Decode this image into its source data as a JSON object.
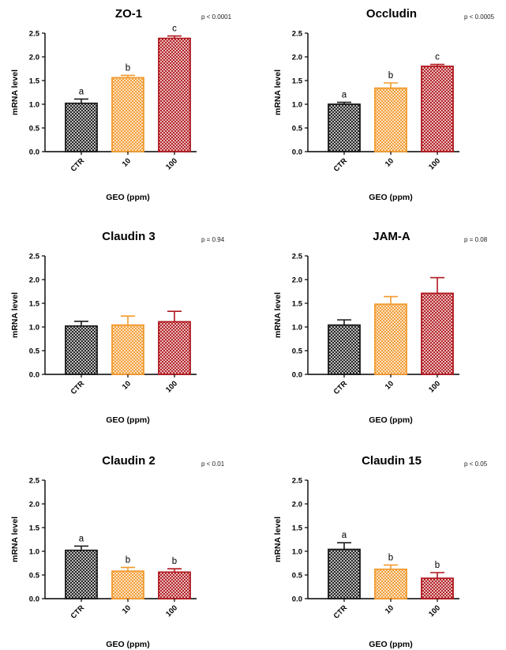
{
  "chart_data": [
    {
      "type": "bar",
      "title": "ZO-1",
      "p_value": "p < 0.0001",
      "categories": [
        "CTR",
        "10",
        "100"
      ],
      "values": [
        1.02,
        1.56,
        2.39
      ],
      "errors": [
        0.09,
        0.05,
        0.05
      ],
      "letters": [
        "a",
        "b",
        "c"
      ],
      "ylabel": "mRNA level",
      "xlabel": "GEO (ppm)",
      "ylim": [
        0,
        2.5
      ],
      "yticks": [
        "0.0",
        "0.5",
        "1.0",
        "1.5",
        "2.0",
        "2.5"
      ]
    },
    {
      "type": "bar",
      "title": "Occludin",
      "p_value": "p < 0.0005",
      "categories": [
        "CTR",
        "10",
        "100"
      ],
      "values": [
        1.0,
        1.34,
        1.8
      ],
      "errors": [
        0.04,
        0.11,
        0.04
      ],
      "letters": [
        "a",
        "b",
        "c"
      ],
      "ylabel": "mRNA level",
      "xlabel": "GEO (ppm)",
      "ylim": [
        0,
        2.5
      ],
      "yticks": [
        "0.0",
        "0.5",
        "1.0",
        "1.5",
        "2.0",
        "2.5"
      ]
    },
    {
      "type": "bar",
      "title": "Claudin 3",
      "p_value": "p = 0.94",
      "categories": [
        "CTR",
        "10",
        "100"
      ],
      "values": [
        1.02,
        1.04,
        1.11
      ],
      "errors": [
        0.1,
        0.19,
        0.22
      ],
      "letters": [
        "",
        "",
        ""
      ],
      "ylabel": "mRNA level",
      "xlabel": "GEO (ppm)",
      "ylim": [
        0,
        2.5
      ],
      "yticks": [
        "0.0",
        "0.5",
        "1.0",
        "1.5",
        "2.0",
        "2.5"
      ]
    },
    {
      "type": "bar",
      "title": "JAM-A",
      "p_value": "p = 0.08",
      "categories": [
        "CTR",
        "10",
        "100"
      ],
      "values": [
        1.04,
        1.48,
        1.71
      ],
      "errors": [
        0.11,
        0.16,
        0.33
      ],
      "letters": [
        "",
        "",
        ""
      ],
      "ylabel": "mRNA level",
      "xlabel": "GEO (ppm)",
      "ylim": [
        0,
        2.5
      ],
      "yticks": [
        "0.0",
        "0.5",
        "1.0",
        "1.5",
        "2.0",
        "2.5"
      ]
    },
    {
      "type": "bar",
      "title": "Claudin 2",
      "p_value": "p < 0.01",
      "categories": [
        "CTR",
        "10",
        "100"
      ],
      "values": [
        1.02,
        0.58,
        0.56
      ],
      "errors": [
        0.09,
        0.08,
        0.07
      ],
      "letters": [
        "a",
        "b",
        "b"
      ],
      "ylabel": "mRNA level",
      "xlabel": "GEO (ppm)",
      "ylim": [
        0,
        2.5
      ],
      "yticks": [
        "0.0",
        "0.5",
        "1.0",
        "1.5",
        "2.0",
        "2.5"
      ]
    },
    {
      "type": "bar",
      "title": "Claudin 15",
      "p_value": "p < 0.05",
      "categories": [
        "CTR",
        "10",
        "100"
      ],
      "values": [
        1.04,
        0.62,
        0.43
      ],
      "errors": [
        0.14,
        0.09,
        0.12
      ],
      "letters": [
        "a",
        "b",
        "b"
      ],
      "ylabel": "mRNA level",
      "xlabel": "GEO (ppm)",
      "ylim": [
        0,
        2.5
      ],
      "yticks": [
        "0.0",
        "0.5",
        "1.0",
        "1.5",
        "2.0",
        "2.5"
      ]
    }
  ],
  "colors": {
    "CTR": "#1a1a1a",
    "10": "#f29a2e",
    "100": "#b0181e"
  }
}
